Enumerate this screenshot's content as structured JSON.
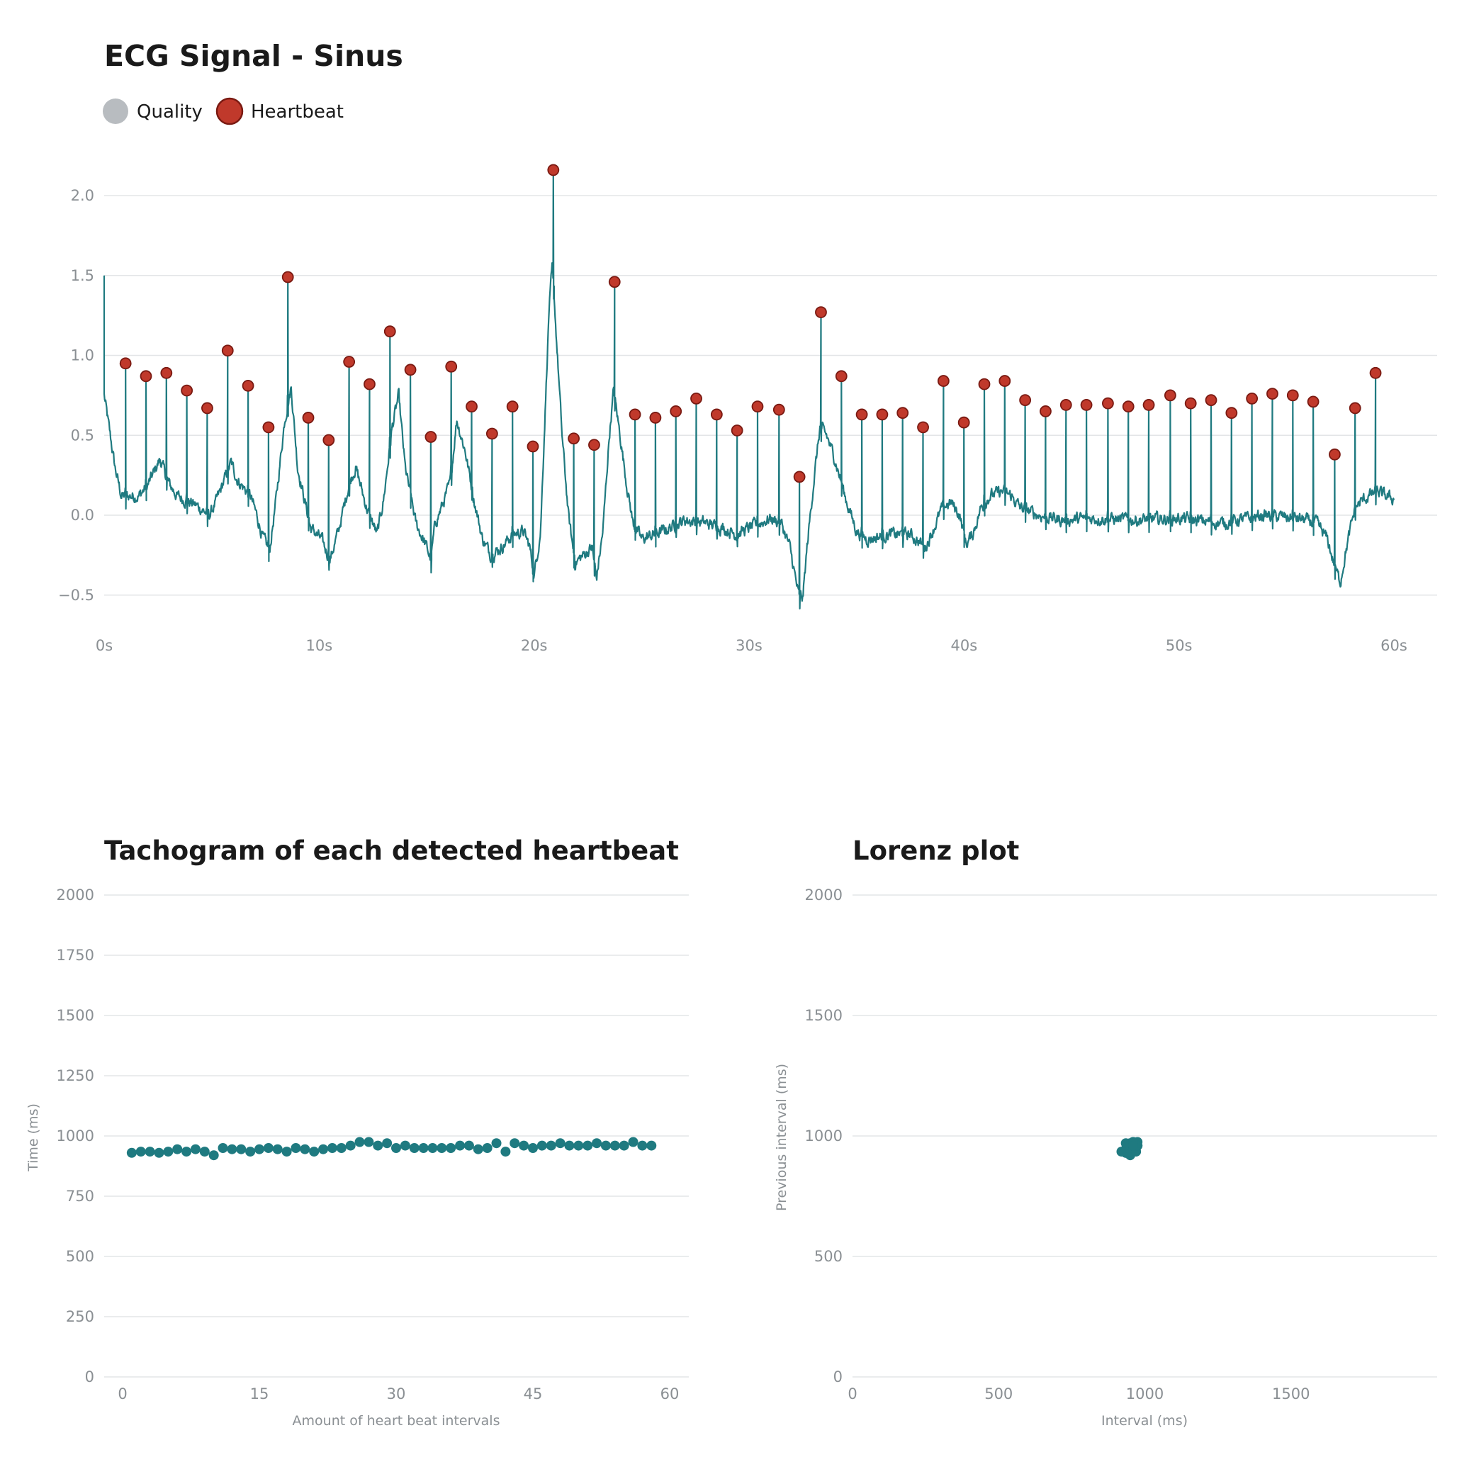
{
  "colors": {
    "signal": "#1f7a80",
    "heartbeat_fill": "#c0392b",
    "heartbeat_stroke": "#7a1a12",
    "quality": "#b8bcc0",
    "grid": "#e3e5e7"
  },
  "chart_data": [
    {
      "type": "line",
      "title": "ECG Signal - Sinus",
      "legend": [
        {
          "name": "Quality"
        },
        {
          "name": "Heartbeat"
        }
      ],
      "legend_placement": "top-left",
      "x_range": [
        0,
        60
      ],
      "ylim": [
        -0.6,
        2.2
      ],
      "y_ticks": [
        -0.5,
        0.0,
        0.5,
        1.0,
        1.5,
        2.0
      ],
      "y_tick_labels": [
        "−0.5",
        "0.0",
        "0.5",
        "1.0",
        "1.5",
        "2.0"
      ],
      "x_ticks": [
        0,
        10,
        20,
        30,
        40,
        50,
        60
      ],
      "x_tick_labels": [
        "0s",
        "10s",
        "20s",
        "30s",
        "40s",
        "50s",
        "60s"
      ],
      "grid": true,
      "baseline": [
        [
          0.0,
          0.75
        ],
        [
          0.5,
          0.3
        ],
        [
          0.8,
          0.12
        ],
        [
          1.6,
          0.12
        ],
        [
          2.0,
          0.18
        ],
        [
          2.6,
          0.35
        ],
        [
          3.0,
          0.2
        ],
        [
          3.4,
          0.12
        ],
        [
          4.3,
          0.06
        ],
        [
          4.9,
          0.0
        ],
        [
          5.2,
          0.08
        ],
        [
          5.9,
          0.33
        ],
        [
          6.2,
          0.22
        ],
        [
          6.8,
          0.12
        ],
        [
          7.1,
          0.0
        ],
        [
          7.4,
          -0.15
        ],
        [
          7.7,
          -0.22
        ],
        [
          8.0,
          0.1
        ],
        [
          8.4,
          0.6
        ],
        [
          8.7,
          0.8
        ],
        [
          9.0,
          0.3
        ],
        [
          9.6,
          -0.08
        ],
        [
          10.1,
          -0.15
        ],
        [
          10.5,
          -0.28
        ],
        [
          10.9,
          -0.1
        ],
        [
          11.4,
          0.2
        ],
        [
          11.7,
          0.3
        ],
        [
          12.2,
          0.05
        ],
        [
          12.7,
          -0.12
        ],
        [
          13.0,
          0.1
        ],
        [
          13.4,
          0.55
        ],
        [
          13.7,
          0.75
        ],
        [
          14.0,
          0.3
        ],
        [
          14.5,
          -0.05
        ],
        [
          15.0,
          -0.2
        ],
        [
          15.2,
          -0.28
        ],
        [
          15.4,
          -0.05
        ],
        [
          15.7,
          0.05
        ],
        [
          16.1,
          0.2
        ],
        [
          16.4,
          0.6
        ],
        [
          16.8,
          0.4
        ],
        [
          17.2,
          0.1
        ],
        [
          17.6,
          -0.15
        ],
        [
          18.0,
          -0.25
        ],
        [
          18.5,
          -0.2
        ],
        [
          19.0,
          -0.12
        ],
        [
          19.5,
          -0.1
        ],
        [
          19.8,
          -0.2
        ],
        [
          20.0,
          -0.38
        ],
        [
          20.3,
          -0.1
        ],
        [
          20.5,
          0.6
        ],
        [
          20.7,
          1.3
        ],
        [
          20.85,
          1.55
        ],
        [
          21.0,
          1.2
        ],
        [
          21.3,
          0.5
        ],
        [
          21.6,
          0.0
        ],
        [
          21.9,
          -0.3
        ],
        [
          22.3,
          -0.25
        ],
        [
          22.7,
          -0.2
        ],
        [
          22.9,
          -0.4
        ],
        [
          23.2,
          -0.1
        ],
        [
          23.5,
          0.5
        ],
        [
          23.7,
          0.78
        ],
        [
          24.0,
          0.5
        ],
        [
          24.3,
          0.2
        ],
        [
          24.6,
          -0.05
        ],
        [
          25.0,
          -0.15
        ],
        [
          26.0,
          -0.1
        ],
        [
          27.0,
          -0.03
        ],
        [
          28.0,
          -0.05
        ],
        [
          28.8,
          -0.08
        ],
        [
          29.4,
          -0.12
        ],
        [
          30.0,
          -0.08
        ],
        [
          31.0,
          -0.02
        ],
        [
          31.5,
          -0.05
        ],
        [
          31.9,
          -0.2
        ],
        [
          32.3,
          -0.5
        ],
        [
          32.5,
          -0.52
        ],
        [
          32.7,
          -0.2
        ],
        [
          33.0,
          0.2
        ],
        [
          33.3,
          0.55
        ],
        [
          33.6,
          0.5
        ],
        [
          34.0,
          0.35
        ],
        [
          34.5,
          0.1
        ],
        [
          35.0,
          -0.1
        ],
        [
          35.5,
          -0.15
        ],
        [
          36.5,
          -0.12
        ],
        [
          37.5,
          -0.12
        ],
        [
          38.2,
          -0.2
        ],
        [
          38.7,
          -0.05
        ],
        [
          39.0,
          0.05
        ],
        [
          39.4,
          0.08
        ],
        [
          39.8,
          0.0
        ],
        [
          40.1,
          -0.18
        ],
        [
          40.4,
          -0.12
        ],
        [
          40.8,
          0.05
        ],
        [
          41.2,
          0.12
        ],
        [
          41.8,
          0.15
        ],
        [
          42.2,
          0.12
        ],
        [
          42.6,
          0.05
        ],
        [
          43.5,
          0.0
        ],
        [
          44.5,
          -0.03
        ],
        [
          46.0,
          -0.02
        ],
        [
          48.0,
          -0.03
        ],
        [
          50.0,
          -0.02
        ],
        [
          52.0,
          -0.05
        ],
        [
          54.0,
          0.0
        ],
        [
          55.5,
          -0.02
        ],
        [
          56.4,
          -0.05
        ],
        [
          56.9,
          -0.15
        ],
        [
          57.2,
          -0.3
        ],
        [
          57.5,
          -0.42
        ],
        [
          57.8,
          -0.2
        ],
        [
          58.2,
          0.05
        ],
        [
          58.6,
          0.1
        ],
        [
          59.2,
          0.15
        ],
        [
          59.6,
          0.12
        ],
        [
          60.0,
          0.1
        ]
      ],
      "heartbeats": [
        [
          1.0,
          0.95
        ],
        [
          1.95,
          0.87
        ],
        [
          2.9,
          0.89
        ],
        [
          3.85,
          0.78
        ],
        [
          4.8,
          0.67
        ],
        [
          5.75,
          1.03
        ],
        [
          6.7,
          0.81
        ],
        [
          7.65,
          0.55
        ],
        [
          8.55,
          1.49
        ],
        [
          9.5,
          0.61
        ],
        [
          10.45,
          0.47
        ],
        [
          11.4,
          0.96
        ],
        [
          12.35,
          0.82
        ],
        [
          13.3,
          1.15
        ],
        [
          14.25,
          0.91
        ],
        [
          15.2,
          0.49
        ],
        [
          16.15,
          0.93
        ],
        [
          17.1,
          0.68
        ],
        [
          18.05,
          0.51
        ],
        [
          19.0,
          0.68
        ],
        [
          19.95,
          0.43
        ],
        [
          20.9,
          2.16
        ],
        [
          21.85,
          0.48
        ],
        [
          22.8,
          0.44
        ],
        [
          23.75,
          1.46
        ],
        [
          24.7,
          0.63
        ],
        [
          25.65,
          0.61
        ],
        [
          26.6,
          0.65
        ],
        [
          27.55,
          0.73
        ],
        [
          28.5,
          0.63
        ],
        [
          29.45,
          0.53
        ],
        [
          30.4,
          0.68
        ],
        [
          31.4,
          0.66
        ],
        [
          32.35,
          0.24
        ],
        [
          33.35,
          1.27
        ],
        [
          34.3,
          0.87
        ],
        [
          35.25,
          0.63
        ],
        [
          36.2,
          0.63
        ],
        [
          37.15,
          0.64
        ],
        [
          38.1,
          0.55
        ],
        [
          39.05,
          0.84
        ],
        [
          40.0,
          0.58
        ],
        [
          40.95,
          0.82
        ],
        [
          41.9,
          0.84
        ],
        [
          42.85,
          0.72
        ],
        [
          43.8,
          0.65
        ],
        [
          44.75,
          0.69
        ],
        [
          45.7,
          0.69
        ],
        [
          46.7,
          0.7
        ],
        [
          47.65,
          0.68
        ],
        [
          48.6,
          0.69
        ],
        [
          49.6,
          0.75
        ],
        [
          50.55,
          0.7
        ],
        [
          51.5,
          0.72
        ],
        [
          52.45,
          0.64
        ],
        [
          53.4,
          0.73
        ],
        [
          54.35,
          0.76
        ],
        [
          55.3,
          0.75
        ],
        [
          56.25,
          0.71
        ],
        [
          57.25,
          0.38
        ],
        [
          58.2,
          0.67
        ],
        [
          59.15,
          0.89
        ]
      ]
    },
    {
      "type": "scatter",
      "title": "Tachogram of each detected heartbeat",
      "xlabel": "Amount of heart beat intervals",
      "ylabel": "Time (ms)",
      "x_range": [
        -1,
        62
      ],
      "ylim": [
        0,
        2000
      ],
      "x_ticks": [
        0,
        15,
        30,
        45,
        60
      ],
      "y_ticks": [
        0,
        250,
        500,
        750,
        1000,
        1250,
        1500,
        1750,
        2000
      ],
      "grid": true,
      "x": [
        1,
        2,
        3,
        4,
        5,
        6,
        7,
        8,
        9,
        10,
        11,
        12,
        13,
        14,
        15,
        16,
        17,
        18,
        19,
        20,
        21,
        22,
        23,
        24,
        25,
        26,
        27,
        28,
        29,
        30,
        31,
        32,
        33,
        34,
        35,
        36,
        37,
        38,
        39,
        40,
        41,
        42,
        43,
        44,
        45,
        46,
        47,
        48,
        49,
        50,
        51,
        52,
        53,
        54,
        55,
        56,
        57,
        58
      ],
      "values": [
        930,
        935,
        935,
        930,
        935,
        945,
        935,
        945,
        935,
        920,
        950,
        945,
        945,
        935,
        945,
        950,
        945,
        935,
        950,
        945,
        935,
        945,
        950,
        950,
        960,
        975,
        975,
        960,
        970,
        950,
        960,
        950,
        950,
        950,
        950,
        950,
        960,
        960,
        945,
        950,
        970,
        935,
        970,
        960,
        950,
        960,
        960,
        970,
        960,
        960,
        960,
        970,
        960,
        960,
        960,
        975,
        960,
        960
      ]
    },
    {
      "type": "scatter",
      "title": "Lorenz plot",
      "xlabel": "Interval (ms)",
      "ylabel": "Previous interval (ms)",
      "x_range": [
        0,
        2000
      ],
      "ylim": [
        0,
        2000
      ],
      "x_ticks": [
        0,
        500,
        1000,
        1500
      ],
      "y_ticks": [
        0,
        500,
        1000,
        1500,
        2000
      ],
      "grid": true,
      "points": [
        [
          935,
          930
        ],
        [
          935,
          935
        ],
        [
          930,
          935
        ],
        [
          935,
          930
        ],
        [
          945,
          935
        ],
        [
          935,
          945
        ],
        [
          945,
          935
        ],
        [
          935,
          945
        ],
        [
          920,
          935
        ],
        [
          950,
          920
        ],
        [
          945,
          950
        ],
        [
          945,
          945
        ],
        [
          935,
          945
        ],
        [
          945,
          935
        ],
        [
          950,
          945
        ],
        [
          945,
          950
        ],
        [
          935,
          945
        ],
        [
          950,
          935
        ],
        [
          945,
          950
        ],
        [
          935,
          945
        ],
        [
          945,
          935
        ],
        [
          950,
          945
        ],
        [
          950,
          950
        ],
        [
          960,
          950
        ],
        [
          975,
          960
        ],
        [
          975,
          975
        ],
        [
          960,
          975
        ],
        [
          970,
          960
        ],
        [
          950,
          970
        ],
        [
          960,
          950
        ],
        [
          950,
          960
        ],
        [
          950,
          950
        ],
        [
          950,
          950
        ],
        [
          950,
          950
        ],
        [
          960,
          950
        ],
        [
          960,
          960
        ],
        [
          945,
          960
        ],
        [
          950,
          945
        ],
        [
          970,
          950
        ],
        [
          935,
          970
        ],
        [
          970,
          935
        ],
        [
          960,
          970
        ],
        [
          950,
          960
        ],
        [
          960,
          950
        ],
        [
          960,
          960
        ],
        [
          970,
          960
        ],
        [
          960,
          970
        ],
        [
          960,
          960
        ],
        [
          960,
          960
        ],
        [
          970,
          960
        ],
        [
          960,
          970
        ],
        [
          960,
          960
        ],
        [
          960,
          960
        ],
        [
          975,
          960
        ],
        [
          960,
          975
        ],
        [
          960,
          960
        ]
      ]
    }
  ]
}
